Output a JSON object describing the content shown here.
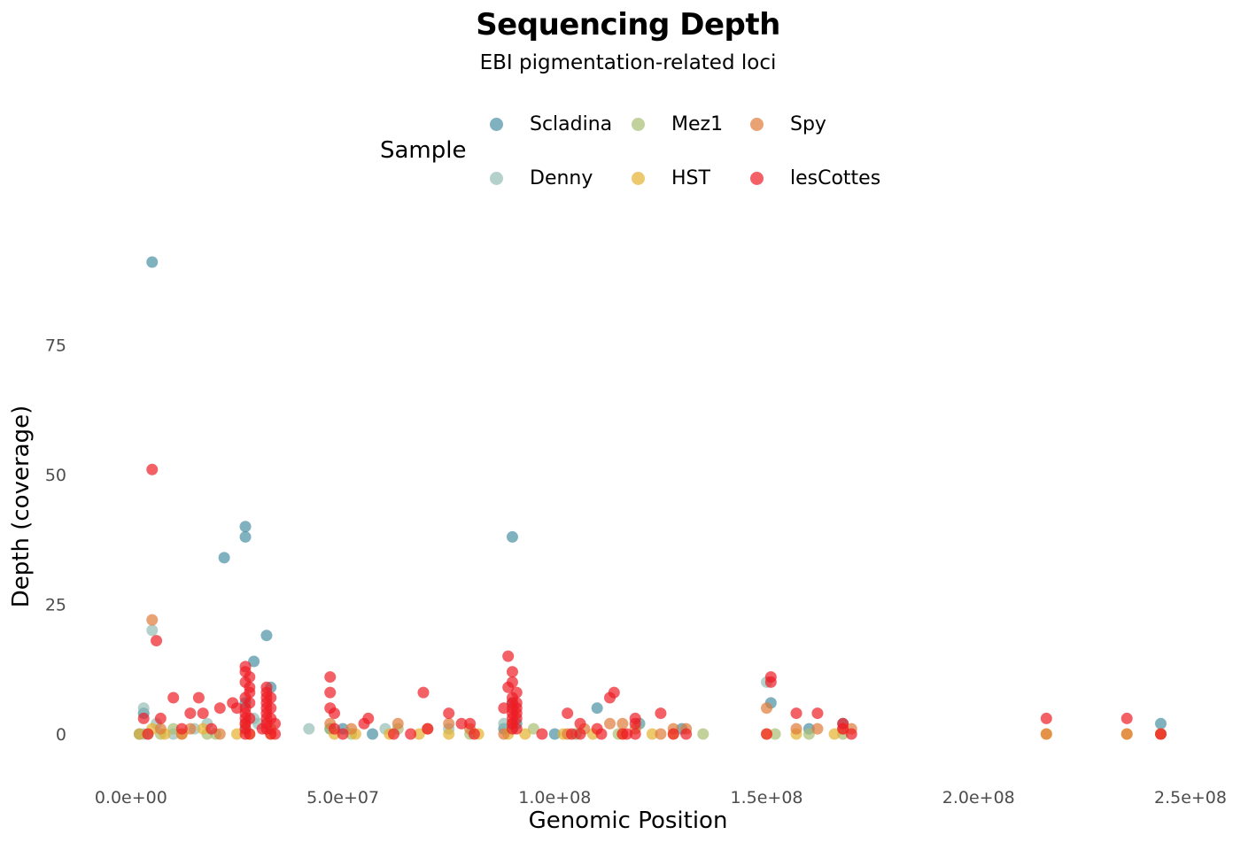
{
  "chart_data": {
    "type": "scatter",
    "title": "Sequencing Depth",
    "subtitle": "EBI pigmentation-related loci",
    "xlabel": "Genomic Position",
    "ylabel": "Depth (coverage)",
    "xlim": [
      -10000000,
      250000000
    ],
    "ylim": [
      -7,
      98
    ],
    "x_ticks": [
      0,
      50000000,
      100000000,
      150000000,
      200000000,
      250000000
    ],
    "x_tick_labels": [
      "0.0e+00",
      "5.0e+07",
      "1.0e+08",
      "1.5e+08",
      "2.0e+08",
      "2.5e+08"
    ],
    "y_ticks": [
      0,
      25,
      50,
      75
    ],
    "y_tick_labels": [
      "0",
      "25",
      "50",
      "75"
    ],
    "grid": false,
    "legend": {
      "title": "Sample",
      "placement": "top",
      "entries": [
        "Scladina",
        "Denny",
        "Mez1",
        "HST",
        "Spy",
        "lesCottes"
      ]
    },
    "series": [
      {
        "name": "Scladina",
        "color": "#4A90A4",
        "x": [
          3000000,
          5000000,
          22000000,
          27000000,
          27000000,
          27000000,
          32000000,
          50000000,
          57000000,
          90000000,
          90000000,
          91000000,
          110000000,
          120000000,
          151000000,
          168000000,
          243000000,
          29000000,
          33000000,
          47000000,
          88000000,
          100000000,
          130000000,
          160000000,
          2000000
        ],
        "y": [
          4,
          91,
          34,
          40,
          38,
          6,
          19,
          1,
          0,
          38,
          6,
          2,
          5,
          2,
          6,
          2,
          2,
          14,
          9,
          1,
          1,
          0,
          1,
          1,
          0
        ]
      },
      {
        "name": "Denny",
        "color": "#8DB8B0",
        "x": [
          3000000,
          5000000,
          6000000,
          15000000,
          18000000,
          27000000,
          29000000,
          30000000,
          60000000,
          88000000,
          90000000,
          105000000,
          150000000,
          120000000,
          42000000,
          75000000,
          3000000,
          10000000
        ],
        "y": [
          5,
          20,
          2,
          1,
          2,
          1,
          3,
          2,
          1,
          2,
          1,
          0,
          10,
          2,
          1,
          1,
          0,
          0
        ],
        "opacity": 0.65
      },
      {
        "name": "Mez1",
        "color": "#A9BE73",
        "x": [
          4000000,
          7000000,
          10000000,
          18000000,
          20000000,
          47000000,
          52000000,
          63000000,
          80000000,
          95000000,
          105000000,
          115000000,
          135000000,
          152000000,
          160000000,
          168000000
        ],
        "y": [
          0,
          0,
          1,
          0,
          0,
          1,
          0,
          1,
          0,
          1,
          0,
          0,
          0,
          0,
          0,
          0
        ]
      },
      {
        "name": "HST",
        "color": "#E5B22F",
        "x": [
          2000000,
          5000000,
          8000000,
          12000000,
          17000000,
          25000000,
          28000000,
          33000000,
          48000000,
          53000000,
          61000000,
          68000000,
          75000000,
          82000000,
          89000000,
          93000000,
          102000000,
          109000000,
          116000000,
          123000000,
          128000000,
          150000000,
          157000000,
          166000000,
          216000000,
          235000000,
          243000000
        ],
        "y": [
          0,
          1,
          0,
          0,
          1,
          0,
          0,
          0,
          0,
          0,
          0,
          0,
          0,
          0,
          0,
          0,
          0,
          0,
          0,
          0,
          0,
          0,
          0,
          0,
          0,
          0,
          0
        ]
      },
      {
        "name": "Spy",
        "color": "#E07B39",
        "x": [
          5000000,
          7000000,
          12000000,
          14000000,
          21000000,
          27000000,
          33000000,
          47000000,
          52000000,
          63000000,
          70000000,
          75000000,
          80000000,
          88000000,
          90000000,
          103000000,
          107000000,
          113000000,
          116000000,
          119000000,
          125000000,
          128000000,
          131000000,
          150000000,
          157000000,
          162000000,
          168000000,
          170000000,
          216000000,
          235000000,
          243000000
        ],
        "y": [
          22,
          1,
          0,
          1,
          0,
          2,
          1,
          2,
          1,
          2,
          1,
          2,
          1,
          0,
          2,
          0,
          1,
          2,
          2,
          1,
          0,
          1,
          1,
          5,
          1,
          1,
          1,
          1,
          0,
          0,
          0
        ]
      },
      {
        "name": "lesCottes",
        "color": "#EE1C25",
        "x": [
          3000000,
          5000000,
          6000000,
          7000000,
          10000000,
          12000000,
          14000000,
          16000000,
          17000000,
          19000000,
          21000000,
          24000000,
          25000000,
          27000000,
          27000000,
          27000000,
          27000000,
          27000000,
          27000000,
          27000000,
          27000000,
          27000000,
          27000000,
          28000000,
          28000000,
          28000000,
          28000000,
          28000000,
          28000000,
          31000000,
          32000000,
          32000000,
          32000000,
          32000000,
          32000000,
          32000000,
          32000000,
          32000000,
          32000000,
          33000000,
          33000000,
          33000000,
          33000000,
          34000000,
          34000000,
          47000000,
          47000000,
          47000000,
          48000000,
          48000000,
          50000000,
          55000000,
          56000000,
          62000000,
          66000000,
          69000000,
          70000000,
          75000000,
          78000000,
          80000000,
          81000000,
          88000000,
          89000000,
          89000000,
          90000000,
          90000000,
          90000000,
          90000000,
          90000000,
          90000000,
          90000000,
          90000000,
          90000000,
          91000000,
          91000000,
          91000000,
          91000000,
          91000000,
          91000000,
          97000000,
          103000000,
          104000000,
          106000000,
          106000000,
          110000000,
          111000000,
          113000000,
          114000000,
          116000000,
          117000000,
          119000000,
          119000000,
          119000000,
          125000000,
          128000000,
          131000000,
          150000000,
          151000000,
          151000000,
          157000000,
          162000000,
          168000000,
          168000000,
          170000000,
          216000000,
          235000000,
          243000000,
          4000000
        ],
        "y": [
          3,
          51,
          18,
          3,
          7,
          1,
          4,
          7,
          4,
          1,
          5,
          6,
          5,
          13,
          12,
          10,
          7,
          5,
          4,
          3,
          2,
          1,
          0,
          11,
          9,
          8,
          6,
          3,
          0,
          1,
          9,
          8,
          7,
          6,
          5,
          4,
          3,
          2,
          1,
          7,
          5,
          3,
          0,
          2,
          0,
          11,
          8,
          5,
          4,
          1,
          0,
          2,
          3,
          0,
          0,
          8,
          1,
          4,
          2,
          2,
          0,
          5,
          15,
          9,
          12,
          10,
          7,
          6,
          5,
          4,
          3,
          2,
          1,
          8,
          6,
          5,
          4,
          3,
          1,
          0,
          4,
          0,
          2,
          0,
          1,
          0,
          7,
          8,
          0,
          0,
          3,
          2,
          0,
          4,
          0,
          0,
          0,
          11,
          10,
          4,
          4,
          2,
          1,
          0,
          3,
          3,
          0,
          0
        ]
      }
    ]
  }
}
